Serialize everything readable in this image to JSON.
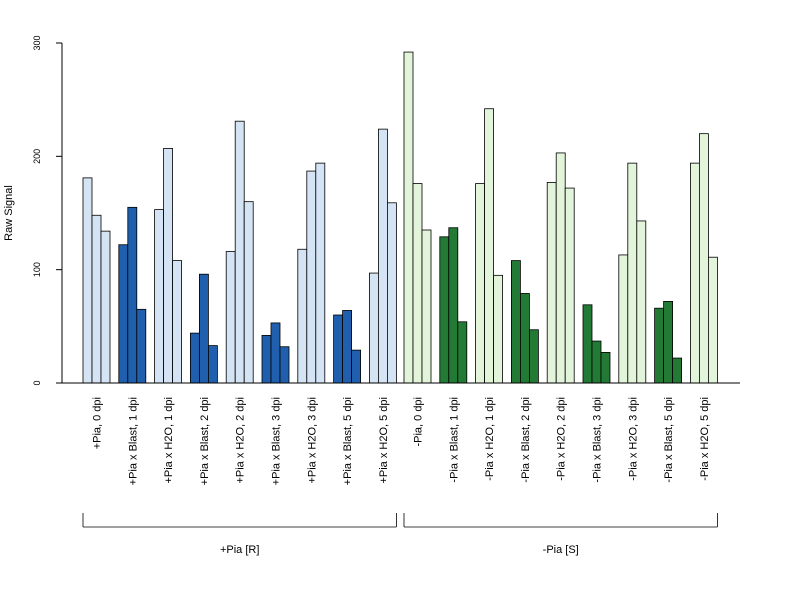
{
  "chart_data": {
    "type": "bar",
    "ylabel": "Raw Signal",
    "xlabel": "",
    "ylim": [
      0,
      300
    ],
    "yticks": [
      0,
      100,
      200,
      300
    ],
    "grid": false,
    "colors": {
      "plus_light": "#d5e4f5",
      "plus_dark": "#1f5fad",
      "minus_light": "#e2f4da",
      "minus_dark": "#237a35",
      "stroke": "#000000"
    },
    "categories": [
      "+Pia, 0 dpi",
      "+Pia x Blast, 1 dpi",
      "+Pia x H2O, 1 dpi",
      "+Pia x Blast, 2 dpi",
      "+Pia x H2O, 2 dpi",
      "+Pia x Blast, 3 dpi",
      "+Pia x H2O, 3 dpi",
      "+Pia x Blast, 5 dpi",
      "+Pia x H2O, 5 dpi",
      "-Pia, 0 dpi",
      "-Pia x Blast, 1 dpi",
      "-Pia x H2O, 1 dpi",
      "-Pia x Blast, 2 dpi",
      "-Pia x H2O, 2 dpi",
      "-Pia x Blast, 3 dpi",
      "-Pia x H2O, 3 dpi",
      "-Pia x Blast, 5 dpi",
      "-Pia x H2O, 5 dpi"
    ],
    "values": [
      [
        181,
        148,
        134
      ],
      [
        122,
        155,
        65
      ],
      [
        153,
        207,
        108
      ],
      [
        44,
        96,
        33
      ],
      [
        116,
        231,
        160
      ],
      [
        42,
        53,
        32
      ],
      [
        118,
        187,
        194
      ],
      [
        60,
        64,
        29
      ],
      [
        97,
        224,
        159
      ],
      [
        292,
        176,
        135
      ],
      [
        129,
        137,
        54
      ],
      [
        176,
        242,
        95
      ],
      [
        108,
        79,
        47
      ],
      [
        177,
        203,
        172
      ],
      [
        69,
        37,
        27
      ],
      [
        113,
        194,
        143
      ],
      [
        66,
        72,
        22
      ],
      [
        194,
        220,
        111
      ]
    ],
    "fill_type": [
      "light",
      "dark",
      "light",
      "dark",
      "light",
      "dark",
      "light",
      "dark",
      "light",
      "light",
      "dark",
      "light",
      "dark",
      "light",
      "dark",
      "light",
      "dark",
      "light"
    ],
    "groups": [
      {
        "label": "+Pia [R]",
        "start": 0,
        "end": 8,
        "palette": "plus"
      },
      {
        "label": "-Pia [S]",
        "start": 9,
        "end": 17,
        "palette": "minus"
      }
    ]
  }
}
